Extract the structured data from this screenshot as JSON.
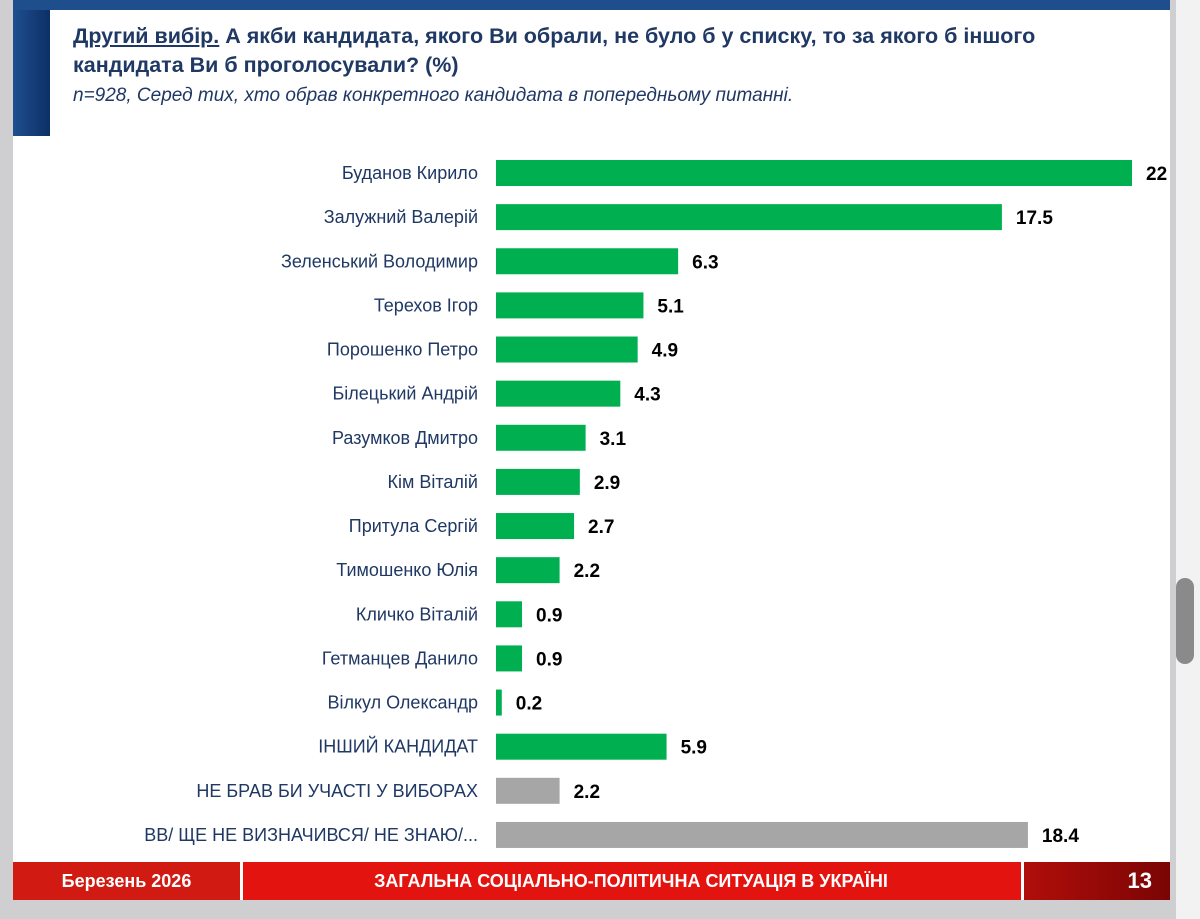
{
  "header": {
    "title_lead": "Другий вибір.",
    "title_rest": "А якби кандидата, якого Ви обрали, не було б у списку, то за якого б іншого кандидата Ви б проголосували? (%)",
    "subtitle": "n=928, Серед тих, хто обрав конкретного кандидата в попередньому питанні."
  },
  "footer": {
    "date": "Березень 2026",
    "title": "ЗАГАЛЬНА СОЦІАЛЬНО-ПОЛІТИЧНА СИТУАЦІЯ В УКРАЇНІ",
    "page": "13"
  },
  "colors": {
    "candidate_bar": "#00b050",
    "other_bar": "#a6a6a6",
    "header_blue": "#1f3864",
    "footer_red": "#e3140f"
  },
  "chart_data": {
    "type": "bar",
    "orientation": "horizontal",
    "categories": [
      "Буданов Кирило",
      "Залужний Валерій",
      "Зеленський Володимир",
      "Терехов Ігор",
      "Порошенко Петро",
      "Білецький Андрій",
      "Разумков Дмитро",
      "Кім Віталій",
      "Притула Сергій",
      "Тимошенко Юлія",
      "Кличко Віталій",
      "Гетманцев Данило",
      "Вілкул Олександр",
      "ІНШИЙ КАНДИДАТ",
      "НЕ БРАВ БИ УЧАСТІ У ВИБОРАХ",
      "ВВ/ ЩЕ НЕ ВИЗНАЧИВСЯ/ НЕ ЗНАЮ/..."
    ],
    "values": [
      22,
      17.5,
      6.3,
      5.1,
      4.9,
      4.3,
      3.1,
      2.9,
      2.7,
      2.2,
      0.9,
      0.9,
      0.2,
      5.9,
      2.2,
      18.4
    ],
    "value_labels": [
      "22",
      "17.5",
      "6.3",
      "5.1",
      "4.9",
      "4.3",
      "3.1",
      "2.9",
      "2.7",
      "2.2",
      "0.9",
      "0.9",
      "0.2",
      "5.9",
      "2.2",
      "18.4"
    ],
    "bar_groups": [
      "candidate",
      "candidate",
      "candidate",
      "candidate",
      "candidate",
      "candidate",
      "candidate",
      "candidate",
      "candidate",
      "candidate",
      "candidate",
      "candidate",
      "candidate",
      "candidate",
      "other",
      "other"
    ],
    "xlim": [
      0,
      22
    ]
  }
}
